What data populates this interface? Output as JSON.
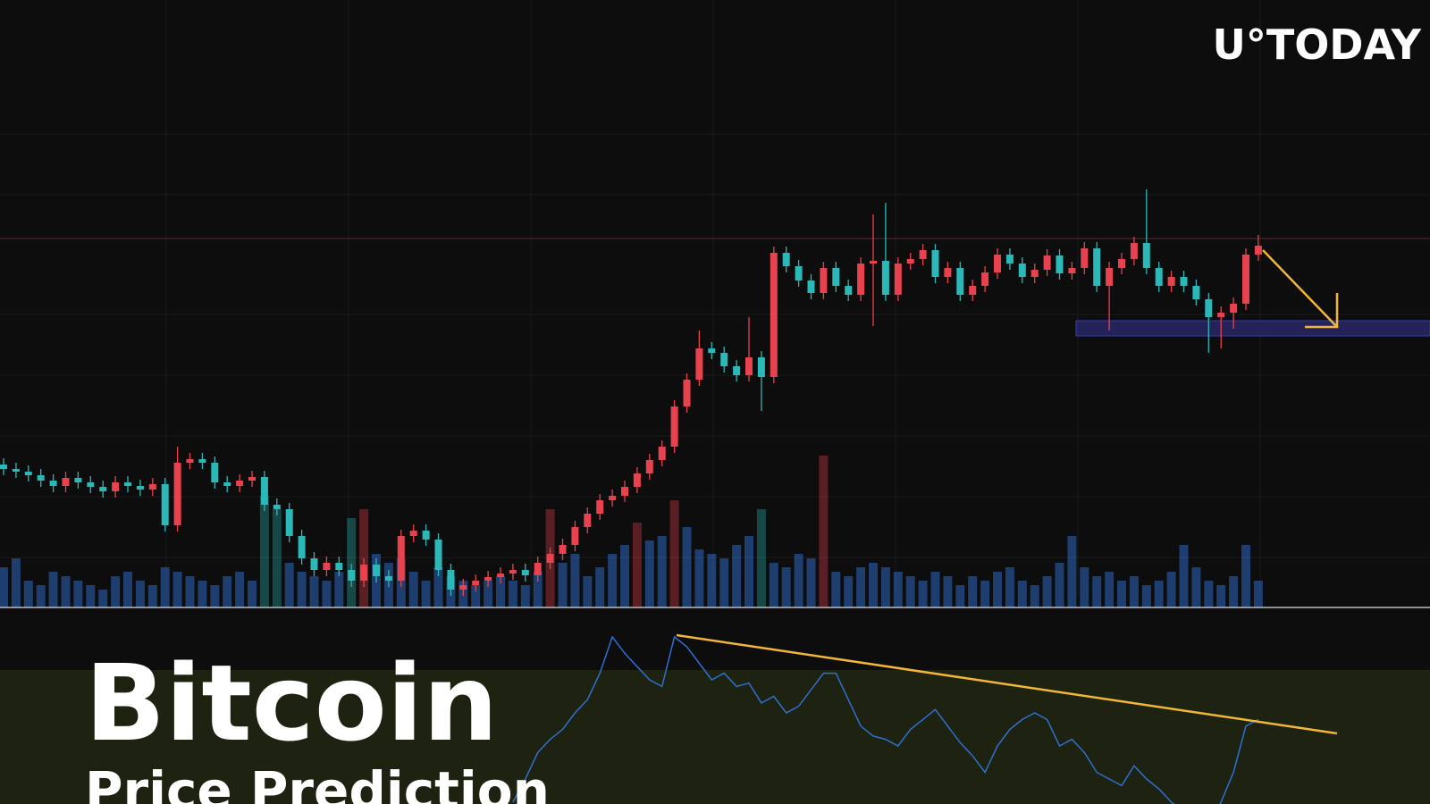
{
  "brand": "U°TODAY",
  "headline": {
    "title": "Bitcoin",
    "subtitle": "Price Prediction"
  },
  "chart_data": {
    "type": "candlestick",
    "up_color": "#e8424f",
    "down_color": "#2bb8b8",
    "volume_color": "#2f6fd1",
    "ylim": [
      0,
      900
    ],
    "open": [
      380,
      375,
      372,
      368,
      362,
      356,
      365,
      360,
      355,
      350,
      360,
      356,
      352,
      358,
      312,
      382,
      386,
      382,
      360,
      356,
      362,
      366,
      335,
      330,
      300,
      275,
      262,
      270,
      262,
      250,
      268,
      255,
      250,
      300,
      306,
      296,
      262,
      240,
      245,
      250,
      254,
      258,
      262,
      256,
      270,
      280,
      290,
      310,
      325,
      340,
      345,
      355,
      370,
      385,
      400,
      445,
      475,
      510,
      505,
      490,
      480,
      500,
      478,
      617,
      602,
      586,
      572,
      600,
      580,
      570,
      605,
      608,
      570,
      605,
      610,
      620,
      590,
      600,
      570,
      580,
      595,
      615,
      605,
      590,
      598,
      614,
      594,
      600,
      622,
      580,
      600,
      610,
      628,
      600,
      580,
      590,
      580,
      565,
      545,
      550,
      560,
      615
    ],
    "high": [
      387,
      382,
      379,
      375,
      369,
      372,
      372,
      367,
      362,
      367,
      367,
      363,
      365,
      365,
      400,
      393,
      393,
      389,
      367,
      369,
      373,
      373,
      342,
      337,
      307,
      282,
      277,
      277,
      269,
      275,
      275,
      262,
      307,
      313,
      313,
      303,
      269,
      252,
      257,
      261,
      265,
      269,
      269,
      277,
      287,
      297,
      317,
      332,
      347,
      352,
      362,
      377,
      392,
      407,
      452,
      482,
      530,
      517,
      512,
      497,
      545,
      507,
      624,
      624,
      609,
      593,
      607,
      607,
      587,
      612,
      660,
      673,
      612,
      617,
      627,
      627,
      607,
      607,
      587,
      602,
      622,
      622,
      612,
      605,
      621,
      621,
      607,
      629,
      629,
      607,
      617,
      635,
      688,
      607,
      597,
      597,
      587,
      572,
      557,
      567,
      622,
      637
    ],
    "low": [
      368,
      365,
      361,
      355,
      349,
      349,
      353,
      348,
      343,
      343,
      349,
      345,
      345,
      305,
      305,
      375,
      375,
      353,
      349,
      349,
      355,
      328,
      323,
      293,
      268,
      255,
      255,
      255,
      243,
      243,
      248,
      243,
      243,
      293,
      289,
      255,
      233,
      233,
      238,
      243,
      247,
      251,
      249,
      249,
      263,
      273,
      283,
      303,
      318,
      333,
      338,
      348,
      363,
      378,
      393,
      438,
      468,
      498,
      483,
      473,
      473,
      440,
      471,
      595,
      579,
      565,
      565,
      573,
      563,
      563,
      535,
      563,
      563,
      598,
      603,
      583,
      583,
      563,
      563,
      573,
      588,
      598,
      583,
      583,
      591,
      587,
      587,
      593,
      573,
      530,
      593,
      603,
      593,
      573,
      573,
      573,
      558,
      505,
      510,
      532,
      553,
      608
    ],
    "close": [
      375,
      372,
      368,
      362,
      356,
      365,
      360,
      355,
      350,
      360,
      356,
      352,
      358,
      312,
      382,
      386,
      382,
      360,
      356,
      362,
      366,
      335,
      330,
      300,
      275,
      262,
      270,
      262,
      250,
      268,
      255,
      250,
      300,
      306,
      296,
      262,
      240,
      245,
      250,
      254,
      258,
      262,
      256,
      270,
      280,
      290,
      310,
      325,
      340,
      345,
      355,
      370,
      385,
      400,
      445,
      475,
      510,
      505,
      490,
      480,
      500,
      478,
      617,
      602,
      586,
      572,
      600,
      580,
      570,
      605,
      608,
      570,
      605,
      610,
      620,
      590,
      600,
      570,
      580,
      595,
      615,
      605,
      590,
      598,
      614,
      594,
      600,
      622,
      580,
      600,
      610,
      628,
      600,
      580,
      590,
      580,
      565,
      545,
      550,
      560,
      615,
      625
    ],
    "vlim": [
      0,
      600
    ],
    "volume": [
      45,
      55,
      30,
      25,
      40,
      35,
      30,
      25,
      20,
      35,
      40,
      30,
      25,
      45,
      40,
      35,
      30,
      25,
      35,
      40,
      30,
      125,
      110,
      50,
      40,
      35,
      30,
      40,
      100,
      110,
      60,
      50,
      55,
      40,
      30,
      45,
      35,
      30,
      25,
      30,
      35,
      30,
      25,
      40,
      110,
      50,
      60,
      35,
      45,
      60,
      70,
      95,
      75,
      80,
      120,
      90,
      65,
      60,
      55,
      70,
      80,
      110,
      50,
      45,
      60,
      55,
      170,
      40,
      35,
      45,
      50,
      45,
      40,
      35,
      30,
      40,
      35,
      25,
      35,
      30,
      40,
      45,
      30,
      25,
      35,
      50,
      80,
      45,
      35,
      40,
      30,
      35,
      25,
      30,
      40,
      70,
      45,
      30,
      25,
      35,
      70,
      30
    ],
    "rsi_color": "#2f6fd1",
    "rsi_lim": [
      0,
      100
    ],
    "rsi": [
      null,
      null,
      null,
      null,
      null,
      null,
      null,
      null,
      null,
      null,
      null,
      null,
      null,
      null,
      null,
      null,
      null,
      null,
      null,
      null,
      null,
      null,
      null,
      null,
      null,
      null,
      null,
      null,
      null,
      null,
      null,
      null,
      null,
      null,
      null,
      null,
      null,
      null,
      null,
      null,
      null,
      33,
      40,
      48,
      52,
      55,
      60,
      64,
      72,
      83,
      78,
      74,
      70,
      68,
      83,
      80,
      75,
      70,
      72,
      68,
      69,
      63,
      65,
      60,
      62,
      67,
      72,
      72,
      64,
      56,
      53,
      52,
      50,
      55,
      58,
      61,
      56,
      51,
      47,
      42,
      50,
      55,
      58,
      60,
      58,
      50,
      52,
      48,
      42,
      40,
      38,
      44,
      40,
      37,
      33,
      30,
      28,
      26,
      33,
      42,
      56,
      58
    ]
  }
}
